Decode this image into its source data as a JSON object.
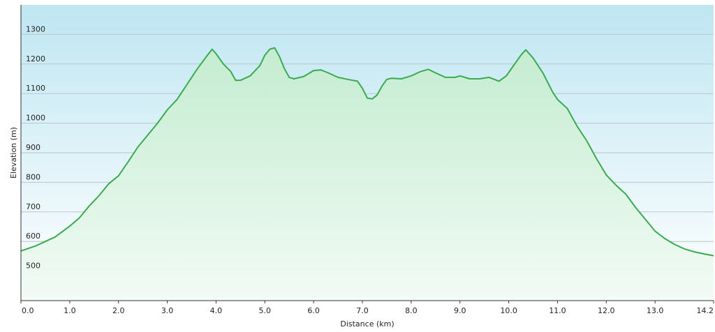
{
  "chart_data": {
    "type": "area",
    "title": "",
    "xlabel": "Distance  (km)",
    "ylabel": "Elevation (m)",
    "xlim": [
      0,
      14.2
    ],
    "ylim": [
      400,
      1400
    ],
    "x_ticks": [
      "0.0",
      "1.0",
      "2.0",
      "3.0",
      "4.0",
      "5.0",
      "6.0",
      "7.0",
      "8.0",
      "9.0",
      "10.0",
      "11.0",
      "12.0",
      "13.0",
      "14.2"
    ],
    "y_ticks": [
      "500",
      "600",
      "700",
      "800",
      "900",
      "1000",
      "1100",
      "1200",
      "1300"
    ],
    "grid": true,
    "colors": {
      "line": "#3aaa4e",
      "fill_top": "#c4ecd0",
      "fill_bottom": "#f2fbf5",
      "bg_top": "#bfe6f2",
      "bg_bottom": "#ffffff",
      "grid": "#b9c6cc",
      "axis": "#333333"
    },
    "series": [
      {
        "x": [
          0.0,
          0.3,
          0.5,
          0.7,
          1.0,
          1.2,
          1.4,
          1.6,
          1.8,
          2.0,
          2.2,
          2.4,
          2.6,
          2.8,
          3.0,
          3.2,
          3.4,
          3.6,
          3.8,
          3.92,
          4.0,
          4.15,
          4.3,
          4.4,
          4.5,
          4.7,
          4.9,
          5.0,
          5.1,
          5.2,
          5.3,
          5.4,
          5.5,
          5.6,
          5.8,
          6.0,
          6.15,
          6.3,
          6.5,
          6.7,
          6.9,
          7.0,
          7.1,
          7.2,
          7.3,
          7.4,
          7.5,
          7.6,
          7.8,
          8.0,
          8.2,
          8.35,
          8.5,
          8.7,
          8.9,
          9.0,
          9.2,
          9.4,
          9.6,
          9.8,
          9.95,
          10.1,
          10.25,
          10.35,
          10.5,
          10.7,
          10.9,
          11.0,
          11.2,
          11.4,
          11.6,
          11.8,
          12.0,
          12.2,
          12.4,
          12.6,
          12.8,
          13.0,
          13.2,
          13.4,
          13.6,
          13.8,
          14.0,
          14.2
        ],
        "y": [
          568,
          585,
          600,
          615,
          652,
          680,
          720,
          755,
          795,
          822,
          870,
          920,
          960,
          1000,
          1045,
          1080,
          1130,
          1180,
          1225,
          1250,
          1235,
          1200,
          1175,
          1145,
          1145,
          1160,
          1195,
          1230,
          1250,
          1255,
          1225,
          1185,
          1155,
          1150,
          1158,
          1178,
          1180,
          1170,
          1155,
          1148,
          1142,
          1118,
          1085,
          1082,
          1095,
          1125,
          1148,
          1152,
          1150,
          1160,
          1175,
          1182,
          1170,
          1155,
          1155,
          1160,
          1150,
          1150,
          1155,
          1142,
          1160,
          1195,
          1230,
          1248,
          1220,
          1170,
          1105,
          1080,
          1050,
          990,
          940,
          880,
          825,
          790,
          760,
          715,
          675,
          635,
          610,
          590,
          575,
          565,
          558,
          552
        ]
      }
    ]
  }
}
